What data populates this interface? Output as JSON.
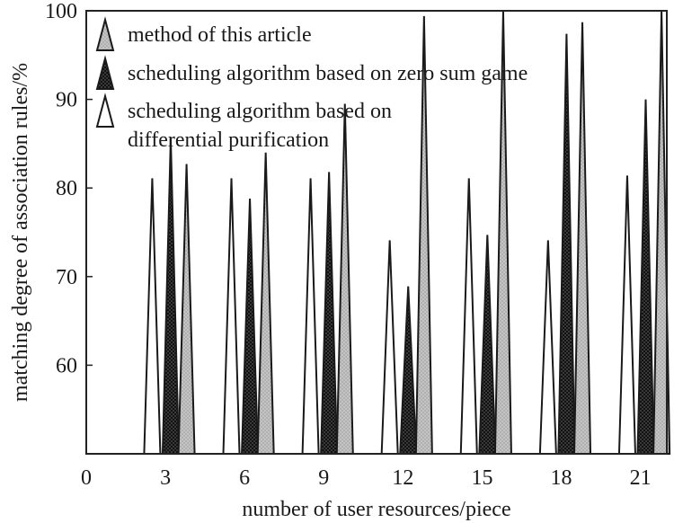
{
  "chart_data": {
    "type": "bar",
    "mark_shape": "triangle-spike",
    "xlabel": "number of user resources/piece",
    "ylabel": "matching degree of association rules/%",
    "xlim": [
      0,
      22
    ],
    "ylim": [
      50,
      100
    ],
    "x_ticks": [
      "0",
      "3",
      "6",
      "9",
      "12",
      "15",
      "18",
      "21"
    ],
    "x_tick_values": [
      0,
      3,
      6,
      9,
      12,
      15,
      18,
      21
    ],
    "y_ticks": [
      "60",
      "70",
      "80",
      "90",
      "100"
    ],
    "y_tick_values": [
      60,
      70,
      80,
      90,
      100
    ],
    "grid": false,
    "legend_position": "top-left",
    "series": [
      {
        "name": "method of this article",
        "color": "#c0c0c0",
        "x": [
          3.8,
          6.8,
          9.8,
          12.8,
          15.8,
          18.8,
          21.8
        ],
        "values": [
          82.7,
          84.0,
          89.5,
          99.4,
          100.0,
          98.7,
          100.0
        ]
      },
      {
        "name": "scheduling algorithm based on zero sum game",
        "color": "#111111",
        "x": [
          3.2,
          6.2,
          9.2,
          12.2,
          15.2,
          18.2,
          21.2
        ],
        "values": [
          85.6,
          78.8,
          81.8,
          68.9,
          74.7,
          97.4,
          90.0
        ]
      },
      {
        "name": "scheduling algorithm based on differential purification",
        "color": "#ffffff",
        "x": [
          2.5,
          5.5,
          8.5,
          11.5,
          14.5,
          17.5,
          20.5
        ],
        "values": [
          81.1,
          81.1,
          81.1,
          74.1,
          81.1,
          74.1,
          81.4
        ]
      }
    ],
    "legend": [
      {
        "lines": [
          "method of this article"
        ]
      },
      {
        "lines": [
          "scheduling algorithm based on zero sum game"
        ]
      },
      {
        "lines": [
          "scheduling algorithm based on",
          "differential purification"
        ]
      }
    ]
  }
}
